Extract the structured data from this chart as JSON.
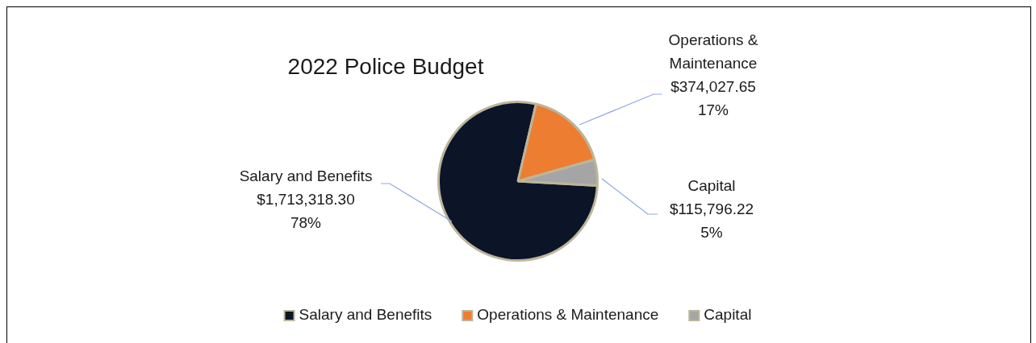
{
  "chart_data": {
    "type": "pie",
    "title": "2022 Police Budget",
    "categories": [
      "Salary and Benefits",
      "Operations & Maintenance",
      "Capital"
    ],
    "values": [
      1713318.3,
      374027.65,
      115796.22
    ],
    "colors": [
      "#0c1428",
      "#ed7d31",
      "#a5a5a5"
    ],
    "value_labels": [
      "$1,713,318.30\n78%",
      "$374,027.65\n17%",
      "$115,796.22\n5%"
    ],
    "legend": "bottom"
  }
}
